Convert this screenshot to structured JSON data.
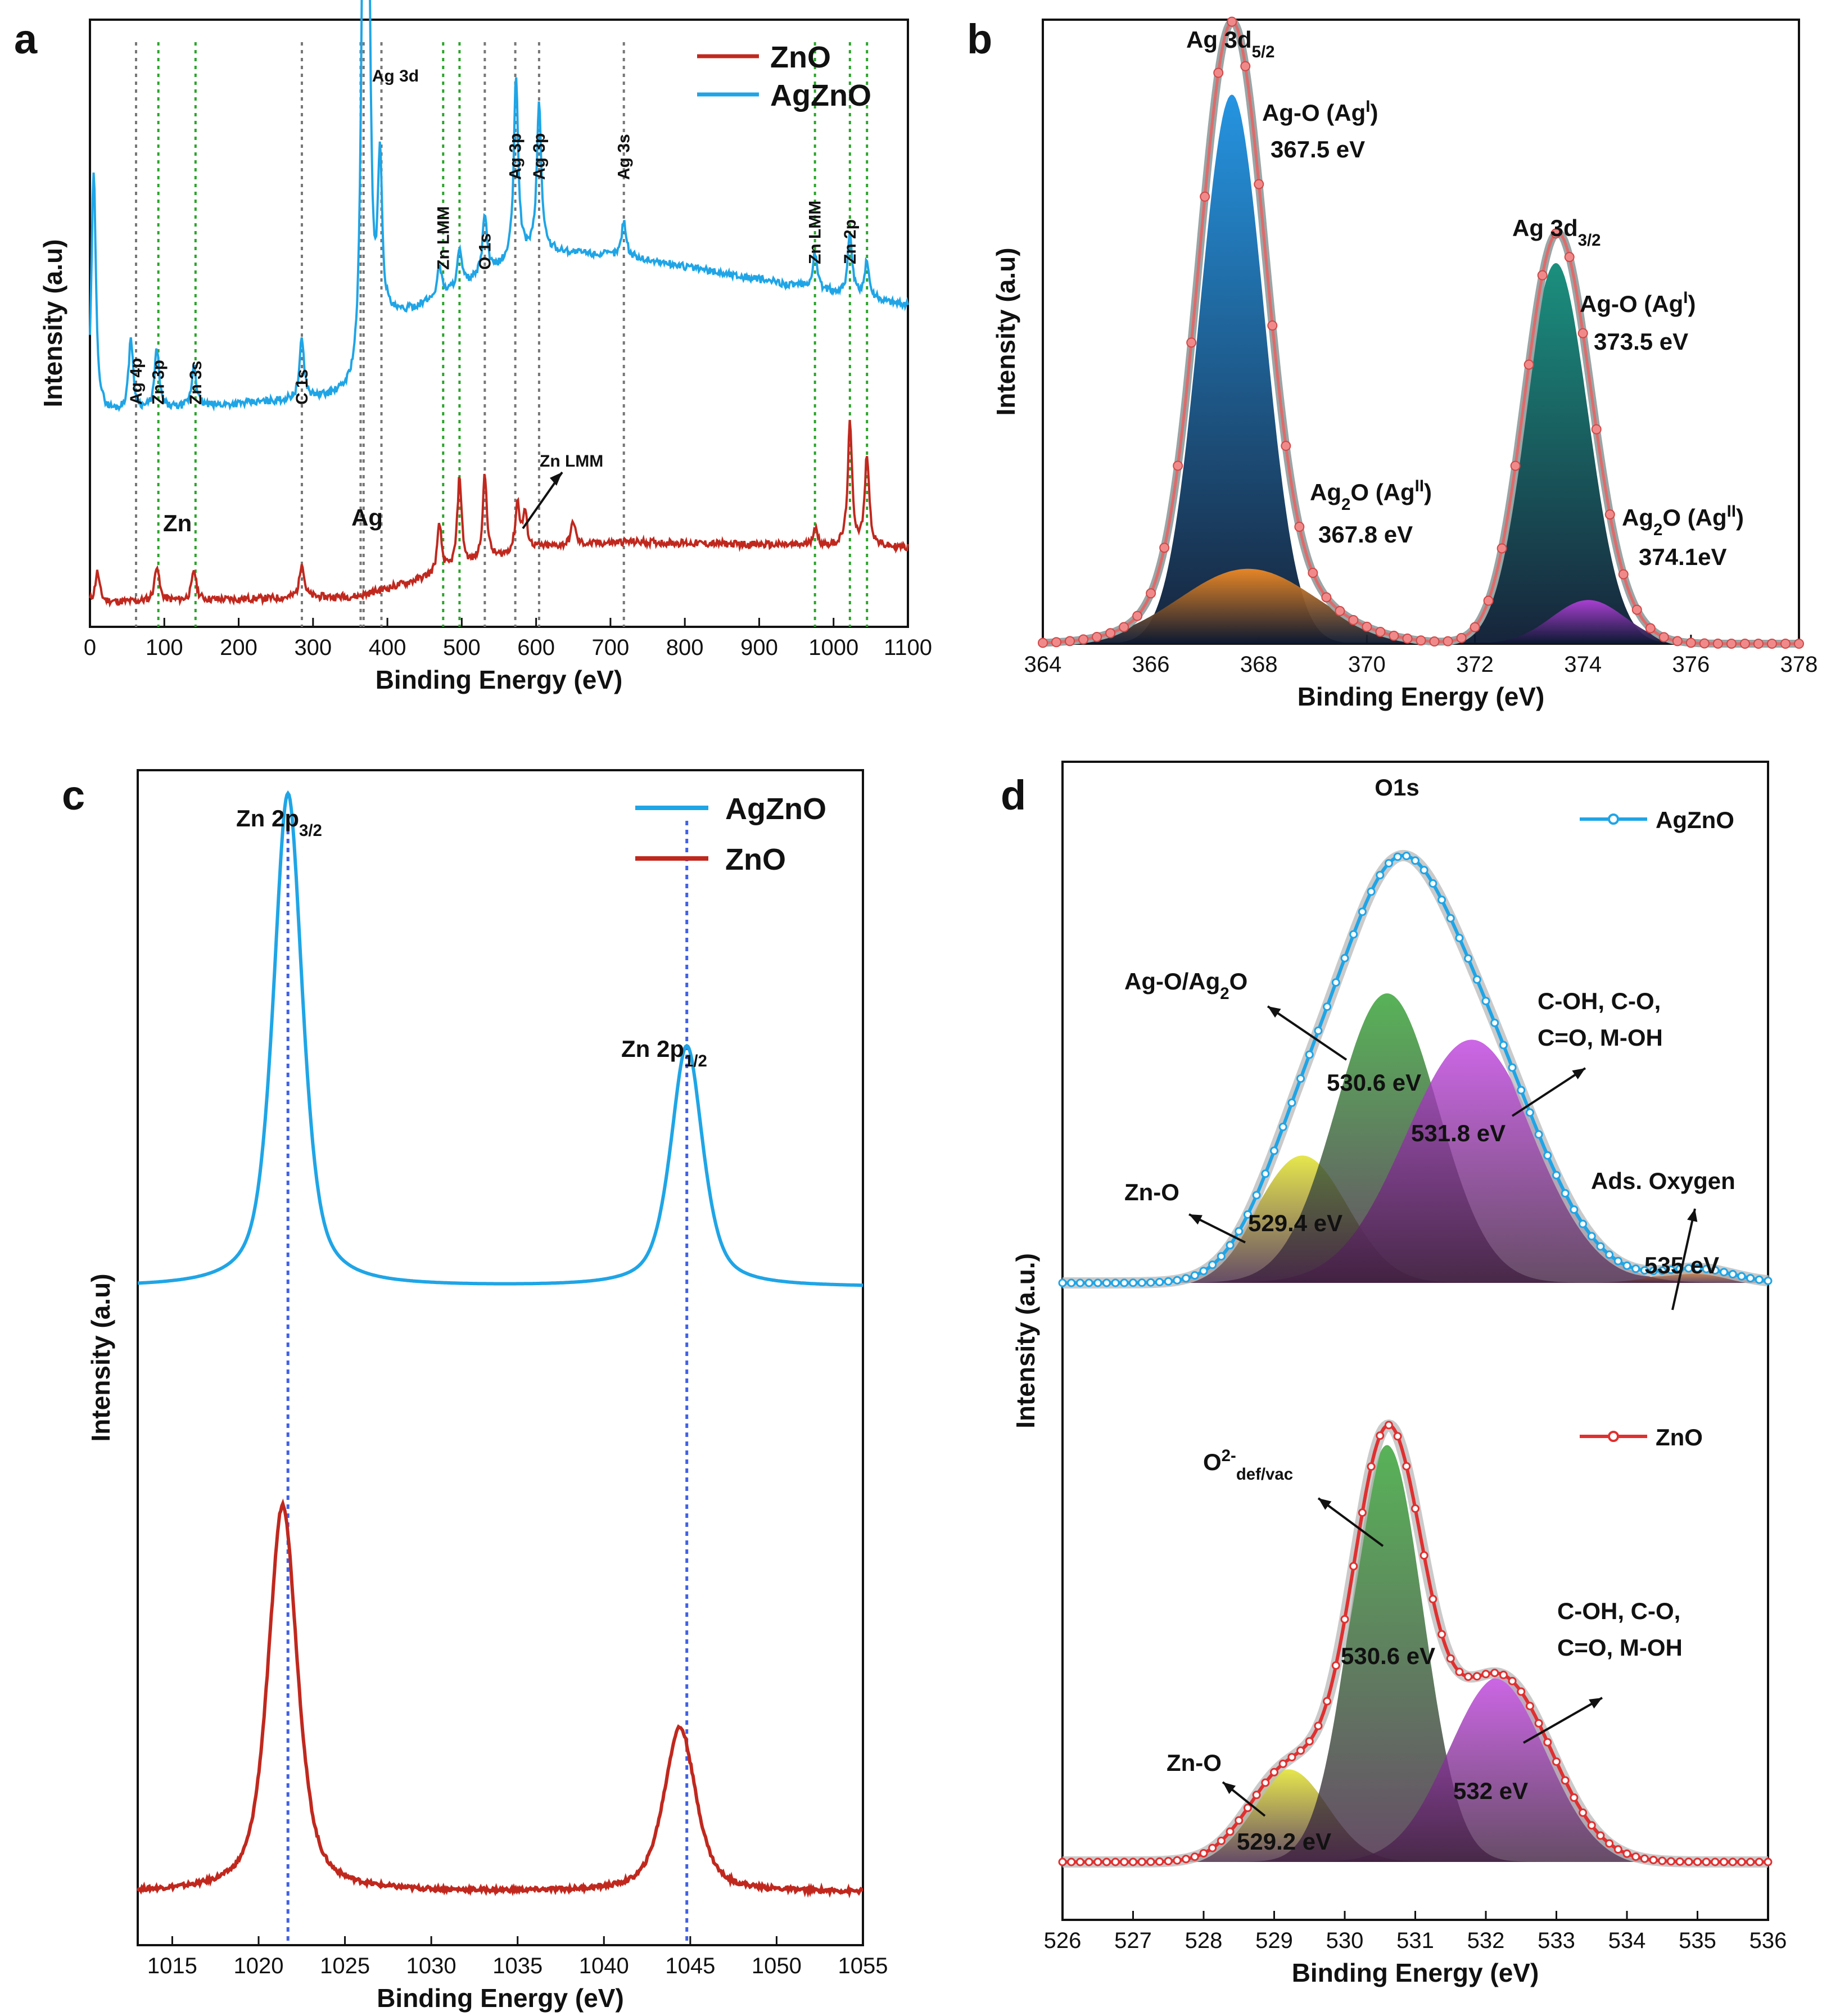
{
  "chart_data": [
    {
      "panel": "a",
      "type": "line",
      "xlabel": "Binding Energy (eV)",
      "ylabel": "Intensity (a.u)",
      "xlim": [
        0,
        1100
      ],
      "ylim": [
        0,
        100
      ],
      "xticks": [
        0,
        100,
        200,
        300,
        400,
        500,
        600,
        700,
        800,
        900,
        1000,
        1100
      ],
      "legend": {
        "position": "top-right",
        "entries": [
          {
            "name": "ZnO",
            "color": "#c0281e"
          },
          {
            "name": "AgZnO",
            "color": "#1fa5e6"
          }
        ]
      },
      "peaks": {
        "ZnO": [
          [
            10,
            5
          ],
          [
            90,
            6
          ],
          [
            140,
            5
          ],
          [
            285,
            6
          ],
          [
            470,
            8
          ],
          [
            497,
            15
          ],
          [
            531,
            14
          ],
          [
            575,
            8
          ],
          [
            585,
            6
          ],
          [
            650,
            4
          ],
          [
            975,
            3
          ],
          [
            1022,
            20
          ],
          [
            1045,
            15
          ]
        ],
        "AgZnO": [
          [
            5,
            40
          ],
          [
            55,
            12
          ],
          [
            90,
            10
          ],
          [
            140,
            7
          ],
          [
            285,
            10
          ],
          [
            368,
            80
          ],
          [
            374,
            74
          ],
          [
            390,
            28
          ],
          [
            470,
            5
          ],
          [
            497,
            6
          ],
          [
            531,
            10
          ],
          [
            573,
            30
          ],
          [
            604,
            24
          ],
          [
            718,
            6
          ],
          [
            975,
            6
          ],
          [
            1022,
            10
          ],
          [
            1045,
            6
          ]
        ]
      },
      "baselines": {
        "ZnO": [
          [
            0,
            4
          ],
          [
            360,
            5
          ],
          [
            600,
            13
          ],
          [
            720,
            14
          ],
          [
            1100,
            13
          ]
        ],
        "AgZnO": [
          [
            0,
            35
          ],
          [
            360,
            38
          ],
          [
            400,
            50
          ],
          [
            600,
            62
          ],
          [
            720,
            61
          ],
          [
            1100,
            53
          ]
        ]
      },
      "line_annotations": [
        {
          "label": "Ag 4p",
          "x": 62,
          "color": "#777777",
          "orient": "v"
        },
        {
          "label": "Zn 3p",
          "x": 92,
          "color": "#2aa52a",
          "orient": "v"
        },
        {
          "label": "Zn 3s",
          "x": 142,
          "color": "#2aa52a",
          "orient": "v"
        },
        {
          "label": "C 1s",
          "x": 285,
          "color": "#777777",
          "orient": "v"
        },
        {
          "label": "Ag 3d",
          "x": 368,
          "color": "#777777",
          "orient": "h"
        },
        {
          "label": "Zn LMM",
          "x": 475,
          "color": "#2aa52a",
          "orient": "v"
        },
        {
          "label": "O 1s",
          "x": 531,
          "color": "#777777",
          "orient": "v"
        },
        {
          "label": "Ag 3p",
          "x": 572,
          "color": "#777777",
          "orient": "v"
        },
        {
          "label": "Ag 3p",
          "x": 604,
          "color": "#777777",
          "orient": "v"
        },
        {
          "label": "Ag 3s",
          "x": 718,
          "color": "#777777",
          "orient": "v"
        },
        {
          "label": "Zn LMM",
          "x": 975,
          "color": "#2aa52a",
          "orient": "v"
        },
        {
          "label": "Zn 2p",
          "x": 1022,
          "color": "#2aa52a",
          "orient": "v"
        }
      ],
      "extra_vlines": [
        {
          "x": 364,
          "color": "#777777"
        },
        {
          "x": 392,
          "color": "#777777"
        },
        {
          "x": 497,
          "color": "#2aa52a"
        },
        {
          "x": 1045,
          "color": "#2aa52a"
        }
      ],
      "annotations": [
        {
          "label": "Zn",
          "color": "#2aa52a"
        },
        {
          "label": "Ag",
          "color": "#999999"
        },
        {
          "label": "Zn LMM",
          "color": "#111111"
        }
      ]
    },
    {
      "panel": "b",
      "type": "area",
      "xlabel": "Binding Energy (eV)",
      "ylabel": "Intensity (a.u)",
      "xlim": [
        364,
        378
      ],
      "ylim": [
        0,
        100
      ],
      "xticks": [
        364,
        366,
        368,
        370,
        372,
        374,
        376,
        378
      ],
      "components": [
        {
          "name": "Ag-O (AgI) 3d5/2",
          "center": 367.5,
          "fwhm": 1.4,
          "height": 88,
          "color": "#1a8fe0"
        },
        {
          "name": "Ag2O (AgII) 3d5/2",
          "center": 367.8,
          "fwhm": 3.0,
          "height": 12,
          "color": "#f08a24"
        },
        {
          "name": "Ag-O (AgI) 3d3/2",
          "center": 373.5,
          "fwhm": 1.4,
          "height": 61,
          "color": "#0f8a78"
        },
        {
          "name": "Ag2O (AgII) 3d3/2",
          "center": 374.1,
          "fwhm": 1.6,
          "height": 7,
          "color": "#b040d8"
        }
      ],
      "labels": [
        {
          "title": "Ag 3d",
          "sub": "5/2"
        },
        {
          "line1": "Ag-O (Ag",
          "sup": "I",
          "line1b": ")",
          "line2": "367.5 eV"
        },
        {
          "title": "Ag 3d",
          "sub": "3/2"
        },
        {
          "line1": "Ag-O (Ag",
          "sup": "I",
          "line1b": ")",
          "line2": "373.5 eV"
        },
        {
          "line1": "Ag",
          "sub": "2",
          "mid": "O (Ag",
          "sup": "II",
          "line1b": ")",
          "line2": "367.8 eV"
        },
        {
          "line1": "Ag",
          "sub": "2",
          "mid": "O (Ag",
          "sup": "II",
          "line1b": ")",
          "line2": "374.1eV"
        }
      ]
    },
    {
      "panel": "c",
      "type": "line",
      "xlabel": "Binding Energy (eV)",
      "ylabel": "Intensity (a.u)",
      "xlim": [
        1013,
        1055
      ],
      "ylim": [
        0,
        100
      ],
      "xticks": [
        1015,
        1020,
        1025,
        1030,
        1035,
        1040,
        1045,
        1050,
        1055
      ],
      "legend": {
        "position": "top-right",
        "entries": [
          {
            "name": "AgZnO",
            "color": "#1fa5e6"
          },
          {
            "name": "ZnO",
            "color": "#c0281e"
          }
        ]
      },
      "series": [
        {
          "name": "AgZnO",
          "baseline": 56,
          "peaks": [
            {
              "center": 1021.7,
              "height": 42,
              "fwhm": 2.0
            },
            {
              "center": 1044.8,
              "height": 20.5,
              "fwhm": 2.2
            }
          ]
        },
        {
          "name": "ZnO",
          "baseline": 4.5,
          "peaks": [
            {
              "center": 1021.4,
              "height": 33,
              "fwhm": 2.0
            },
            {
              "center": 1044.4,
              "height": 14,
              "fwhm": 2.2
            }
          ]
        }
      ],
      "ref_lines": [
        1021.7,
        1044.8
      ],
      "labels": [
        {
          "text": "Zn 2p",
          "sub": "3/2"
        },
        {
          "text": "Zn 2p",
          "sub": "1/2"
        }
      ]
    },
    {
      "panel": "d",
      "type": "area",
      "title": "O1s",
      "xlabel": "Binding Energy (eV)",
      "ylabel": "Intensity (a.u.)",
      "xlim": [
        526,
        536
      ],
      "ylim": [
        0,
        100
      ],
      "xticks": [
        526,
        527,
        528,
        529,
        530,
        531,
        532,
        533,
        534,
        535,
        536
      ],
      "series": [
        {
          "name": "AgZnO",
          "color": "#1fa5e6",
          "baseline": 55,
          "components": [
            {
              "center": 529.4,
              "height": 11,
              "fwhm": 1.5,
              "color": "#e0e020"
            },
            {
              "center": 530.6,
              "height": 25,
              "fwhm": 1.7,
              "color": "#2ea02e"
            },
            {
              "center": 531.8,
              "height": 21,
              "fwhm": 2.2,
              "color": "#c040e0"
            },
            {
              "center": 535.0,
              "height": 1.2,
              "fwhm": 1.2,
              "color": "#f08a24"
            }
          ]
        },
        {
          "name": "ZnO",
          "color": "#e03030",
          "baseline": 5,
          "components": [
            {
              "center": 529.2,
              "height": 8,
              "fwhm": 1.3,
              "color": "#e0e020"
            },
            {
              "center": 530.6,
              "height": 36,
              "fwhm": 1.2,
              "color": "#2ea02e"
            },
            {
              "center": 532.2,
              "height": 16,
              "fwhm": 1.7,
              "color": "#c040e0"
            }
          ]
        }
      ],
      "labels": {
        "agzno": [
          "Ag-O/Ag",
          "2",
          "O",
          "530.6 eV",
          "C-OH, C-O,",
          "C=O, M-OH",
          "531.8 eV",
          "Zn-O",
          "529.4 eV",
          "Ads. Oxygen",
          "535 eV"
        ],
        "zno": [
          "O",
          "2-",
          "def/vac",
          "530.6 eV",
          "C-OH, C-O,",
          "C=O, M-OH",
          "Zn-O",
          "529.2 eV",
          "532 eV"
        ]
      }
    }
  ],
  "panel_letters": [
    "a",
    "b",
    "c",
    "d"
  ]
}
